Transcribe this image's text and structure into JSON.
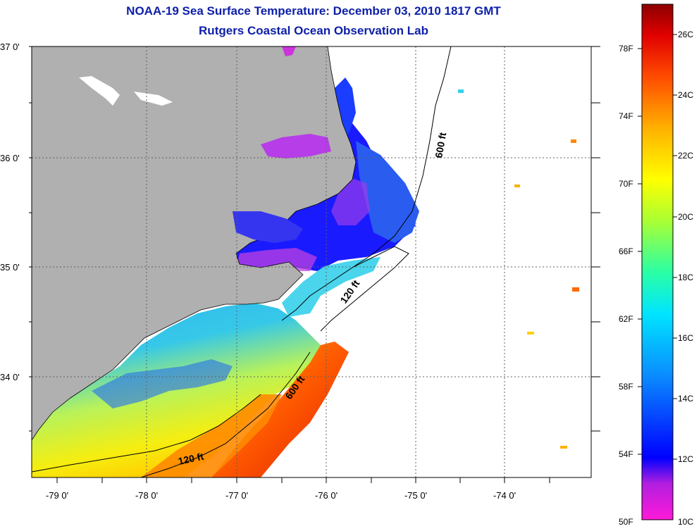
{
  "header": {
    "title": "NOAA-19 Sea Surface Temperature:  December 03, 2010 1817 GMT",
    "subtitle": "Rutgers Coastal Ocean Observation Lab"
  },
  "axes": {
    "lat_labels": [
      "37 0'",
      "36 0'",
      "35 0'",
      "34 0'"
    ],
    "lon_labels": [
      "-79 0'",
      "-78 0'",
      "-77 0'",
      "-76 0'",
      "-75 0'",
      "-74 0'"
    ]
  },
  "isobaths": {
    "label_600_north": "600 ft",
    "label_120_north": "120 ft",
    "label_600_south": "600 ft",
    "label_120_south": "120 ft"
  },
  "colorbar": {
    "fahrenheit_labels": [
      "78F",
      "74F",
      "70F",
      "66F",
      "62F",
      "58F",
      "54F",
      "50F"
    ],
    "celsius_labels": [
      "26C",
      "24C",
      "22C",
      "20C",
      "18C",
      "16C",
      "14C",
      "12C",
      "10C"
    ]
  },
  "colors": {
    "land": "#b0b0b0",
    "ocean_nodata": "#ffffff",
    "title_blue": "#0d1fa8",
    "cold": "#0000ff",
    "warm": "#e53a10"
  }
}
